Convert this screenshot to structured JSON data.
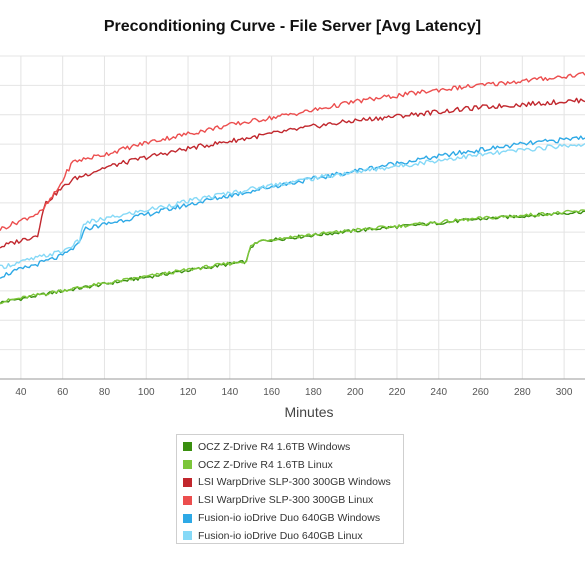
{
  "chart_data": {
    "type": "line",
    "title": "Preconditioning Curve - File Server [Avg Latency]",
    "xlabel": "Minutes",
    "ylabel": "",
    "xlim": [
      30,
      310
    ],
    "xticks": [
      40,
      60,
      80,
      100,
      120,
      140,
      160,
      180,
      200,
      220,
      240,
      260,
      280,
      300
    ],
    "ylim": [
      0,
      11
    ],
    "grid": true,
    "legend_position": "bottom",
    "series": [
      {
        "name": "OCZ Z-Drive R4 1.6TB Windows",
        "color": "#3a8f0f",
        "x": [
          30,
          60,
          90,
          120,
          148,
          150,
          155,
          180,
          200,
          230,
          260,
          290,
          310
        ],
        "y": [
          2.6,
          3.0,
          3.35,
          3.7,
          4.0,
          4.5,
          4.7,
          4.9,
          5.05,
          5.25,
          5.45,
          5.6,
          5.7
        ]
      },
      {
        "name": "OCZ Z-Drive R4 1.6TB Linux",
        "color": "#7cc63a",
        "x": [
          30,
          60,
          90,
          120,
          148,
          150,
          155,
          180,
          200,
          230,
          260,
          290,
          310
        ],
        "y": [
          2.62,
          3.02,
          3.37,
          3.72,
          4.02,
          4.52,
          4.72,
          4.92,
          5.07,
          5.27,
          5.47,
          5.62,
          5.72
        ]
      },
      {
        "name": "LSI WarpDrive SLP-300 300GB Windows",
        "color": "#c1272d",
        "x": [
          30,
          48,
          50,
          52,
          58,
          65,
          80,
          100,
          120,
          140,
          160,
          180,
          200,
          220,
          240,
          260,
          280,
          300,
          310
        ],
        "y": [
          4.5,
          4.9,
          5.6,
          6.0,
          6.4,
          6.8,
          7.2,
          7.55,
          7.85,
          8.1,
          8.35,
          8.6,
          8.8,
          8.95,
          9.1,
          9.25,
          9.35,
          9.45,
          9.5
        ]
      },
      {
        "name": "LSI WarpDrive SLP-300 300GB Linux",
        "color": "#ec4e4e",
        "x": [
          30,
          50,
          58,
          62,
          65,
          80,
          100,
          120,
          140,
          160,
          180,
          200,
          220,
          240,
          260,
          280,
          300,
          310
        ],
        "y": [
          5.1,
          5.7,
          6.5,
          7.05,
          7.4,
          7.65,
          8.05,
          8.35,
          8.65,
          8.9,
          9.15,
          9.45,
          9.65,
          9.85,
          10.0,
          10.15,
          10.3,
          10.4
        ]
      },
      {
        "name": "Fusion-io ioDrive Duo 640GB Windows",
        "color": "#2ea9e6",
        "x": [
          30,
          60,
          68,
          70,
          100,
          130,
          160,
          190,
          220,
          250,
          280,
          300,
          310
        ],
        "y": [
          3.5,
          4.2,
          4.6,
          5.1,
          5.6,
          6.1,
          6.55,
          6.95,
          7.35,
          7.7,
          8.0,
          8.15,
          8.25
        ]
      },
      {
        "name": "Fusion-io ioDrive Duo 640GB Linux",
        "color": "#86d9f7",
        "x": [
          30,
          60,
          68,
          70,
          100,
          130,
          160,
          190,
          220,
          250,
          280,
          300,
          310
        ],
        "y": [
          3.8,
          4.35,
          4.7,
          5.3,
          5.75,
          6.2,
          6.6,
          6.95,
          7.25,
          7.55,
          7.8,
          7.95,
          8.0
        ]
      }
    ]
  }
}
